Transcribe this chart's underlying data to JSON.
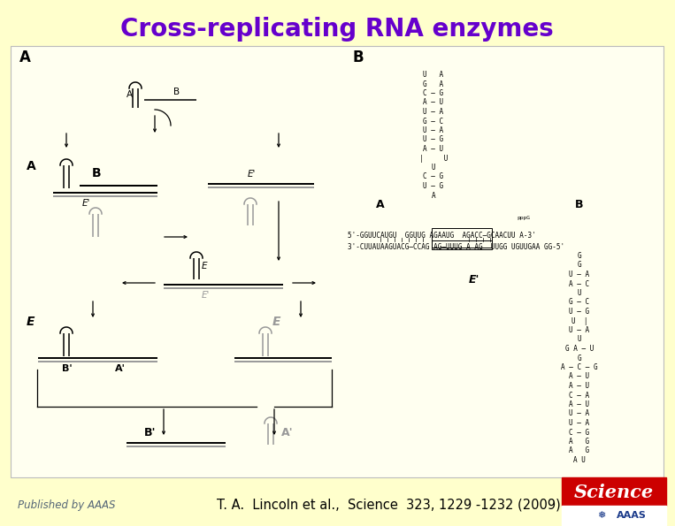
{
  "title": "Cross-replicating RNA enzymes",
  "title_color": "#6600cc",
  "title_fontsize": 20,
  "bg_color": "#ffffcc",
  "inner_bg": "#fffff0",
  "footer_text": "T. A.  Lincoln et al.,  Science  323, 1229 -1232 (2009)",
  "published_text": "Published by AAAS",
  "science_red": "#cc0000",
  "science_blue": "#1a3a8a",
  "footer_fontsize": 10.5,
  "published_fontsize": 8.5,
  "border_color": "#bbbbbb",
  "black": "#000000",
  "gray": "#999999"
}
